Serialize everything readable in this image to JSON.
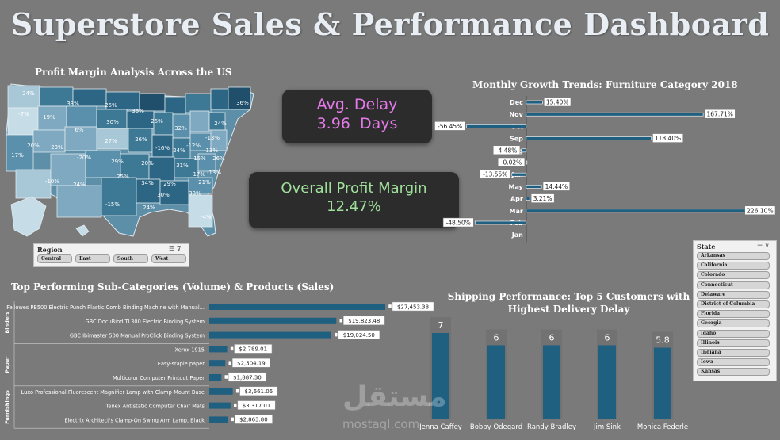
{
  "title": "Superstore Sales & Performance Dashboard",
  "colors": {
    "background": "#7a7a7a",
    "bar_fill": "#1f5f80",
    "kpi_bg": "#2c2c2c",
    "delay_text": "#e57ae8",
    "margin_text": "#9fe09a",
    "map_dark": "#1f4f6b",
    "map_light": "#c6dde8"
  },
  "map": {
    "title": "Profit Margin Analysis Across the US",
    "labels": [
      "24%",
      "-7%",
      "19%",
      "33%",
      "25%",
      "36%",
      "26%",
      "32%",
      "36%",
      "24%",
      "-13%",
      "30%",
      "6%",
      "20%",
      "23%",
      "27%",
      "26%",
      "-16%",
      "24%",
      "-12%",
      "-13%",
      "17%",
      "-20%",
      "29%",
      "20%",
      "31%",
      "15%",
      "26%",
      "-13%",
      "-10%",
      "24%",
      "25%",
      "34%",
      "29%",
      "30%",
      "33%",
      "21%",
      "-15%",
      "24%",
      "-4%",
      "-17%"
    ]
  },
  "kpis": {
    "avg_delay_label": "Avg. Delay",
    "avg_delay_value": "3.96  Days",
    "profit_margin_label": "Overall Profit Margin",
    "profit_margin_value": "12.47%"
  },
  "region_slicer": {
    "header": "Region",
    "items": [
      "Central",
      "East",
      "South",
      "West"
    ]
  },
  "state_slicer": {
    "header": "State",
    "items": [
      "Arkansas",
      "California",
      "Colorado",
      "Connecticut",
      "Delaware",
      "District of Columbia",
      "Florida",
      "Georgia",
      "Idaho",
      "Illinois",
      "Indiana",
      "Iowa",
      "Kansas"
    ]
  },
  "chart_data": [
    {
      "type": "bar",
      "orientation": "horizontal",
      "title": "Monthly Growth Trends: Furniture Category 2018",
      "categories": [
        "Dec",
        "Nov",
        "Oct",
        "Sep",
        "Aug",
        "Jul",
        "Jun",
        "May",
        "Apr",
        "Mar",
        "Feb",
        "Jan"
      ],
      "values": [
        15.4,
        167.71,
        -56.45,
        118.4,
        -4.48,
        -0.02,
        -13.55,
        14.44,
        3.21,
        226.1,
        -48.5,
        null
      ],
      "data_labels": [
        "15.40%",
        "167.71%",
        "-56.45%",
        "118.40%",
        "-4.48%",
        "-0.02%",
        "-13.55%",
        "14.44%",
        "3.21%",
        "226.10%",
        "-48.50%",
        ""
      ],
      "unit": "%"
    },
    {
      "type": "bar",
      "orientation": "horizontal",
      "title": "Top Performing Sub-Categories (Volume) & Products (Sales)",
      "groups": [
        {
          "name": "Binders",
          "products": [
            {
              "name": "Fellowes PB500 Electric Punch Plastic Comb Binding Machine with Manual...",
              "value": 27453.38,
              "label": "$27,453.38"
            },
            {
              "name": "GBC DocuBind TL300 Electric Binding System",
              "value": 19823.48,
              "label": "$19,823.48"
            },
            {
              "name": "GBC Ibimaster 500 Manual ProClick Binding System",
              "value": 19024.5,
              "label": "$19,024.50"
            }
          ]
        },
        {
          "name": "Paper",
          "products": [
            {
              "name": "Xerox 1915",
              "value": 2789.01,
              "label": "$2,789.01"
            },
            {
              "name": "Easy-staple paper",
              "value": 2504.19,
              "label": "$2,504.19"
            },
            {
              "name": "Multicolor Computer Printout Paper",
              "value": 1887.3,
              "label": "$1,887.30"
            }
          ]
        },
        {
          "name": "Furnishings",
          "products": [
            {
              "name": "Luxo Professional Fluorescent Magnifier Lamp with Clamp-Mount Base",
              "value": 3661.06,
              "label": "$3,661.06"
            },
            {
              "name": "Tenex Antistatic Computer Chair Mats",
              "value": 3317.01,
              "label": "$3,317.01"
            },
            {
              "name": "Electrix Architect's Clamp-On Swing Arm Lamp, Black",
              "value": 2863.8,
              "label": "$2,863.80"
            }
          ]
        }
      ]
    },
    {
      "type": "bar",
      "orientation": "vertical",
      "title": "Shipping Performance: Top 5 Customers with Highest Delivery Delay",
      "categories": [
        "Jenna Caffey",
        "Bobby Odegard",
        "Randy Bradley",
        "Jim Sink",
        "Monica Federle"
      ],
      "values": [
        7,
        6,
        6,
        6,
        5.8
      ],
      "data_labels": [
        "7",
        "6",
        "6",
        "6",
        "5.8"
      ]
    }
  ],
  "watermark": {
    "arabic": "مستقل",
    "latin": "mostaql.com"
  }
}
